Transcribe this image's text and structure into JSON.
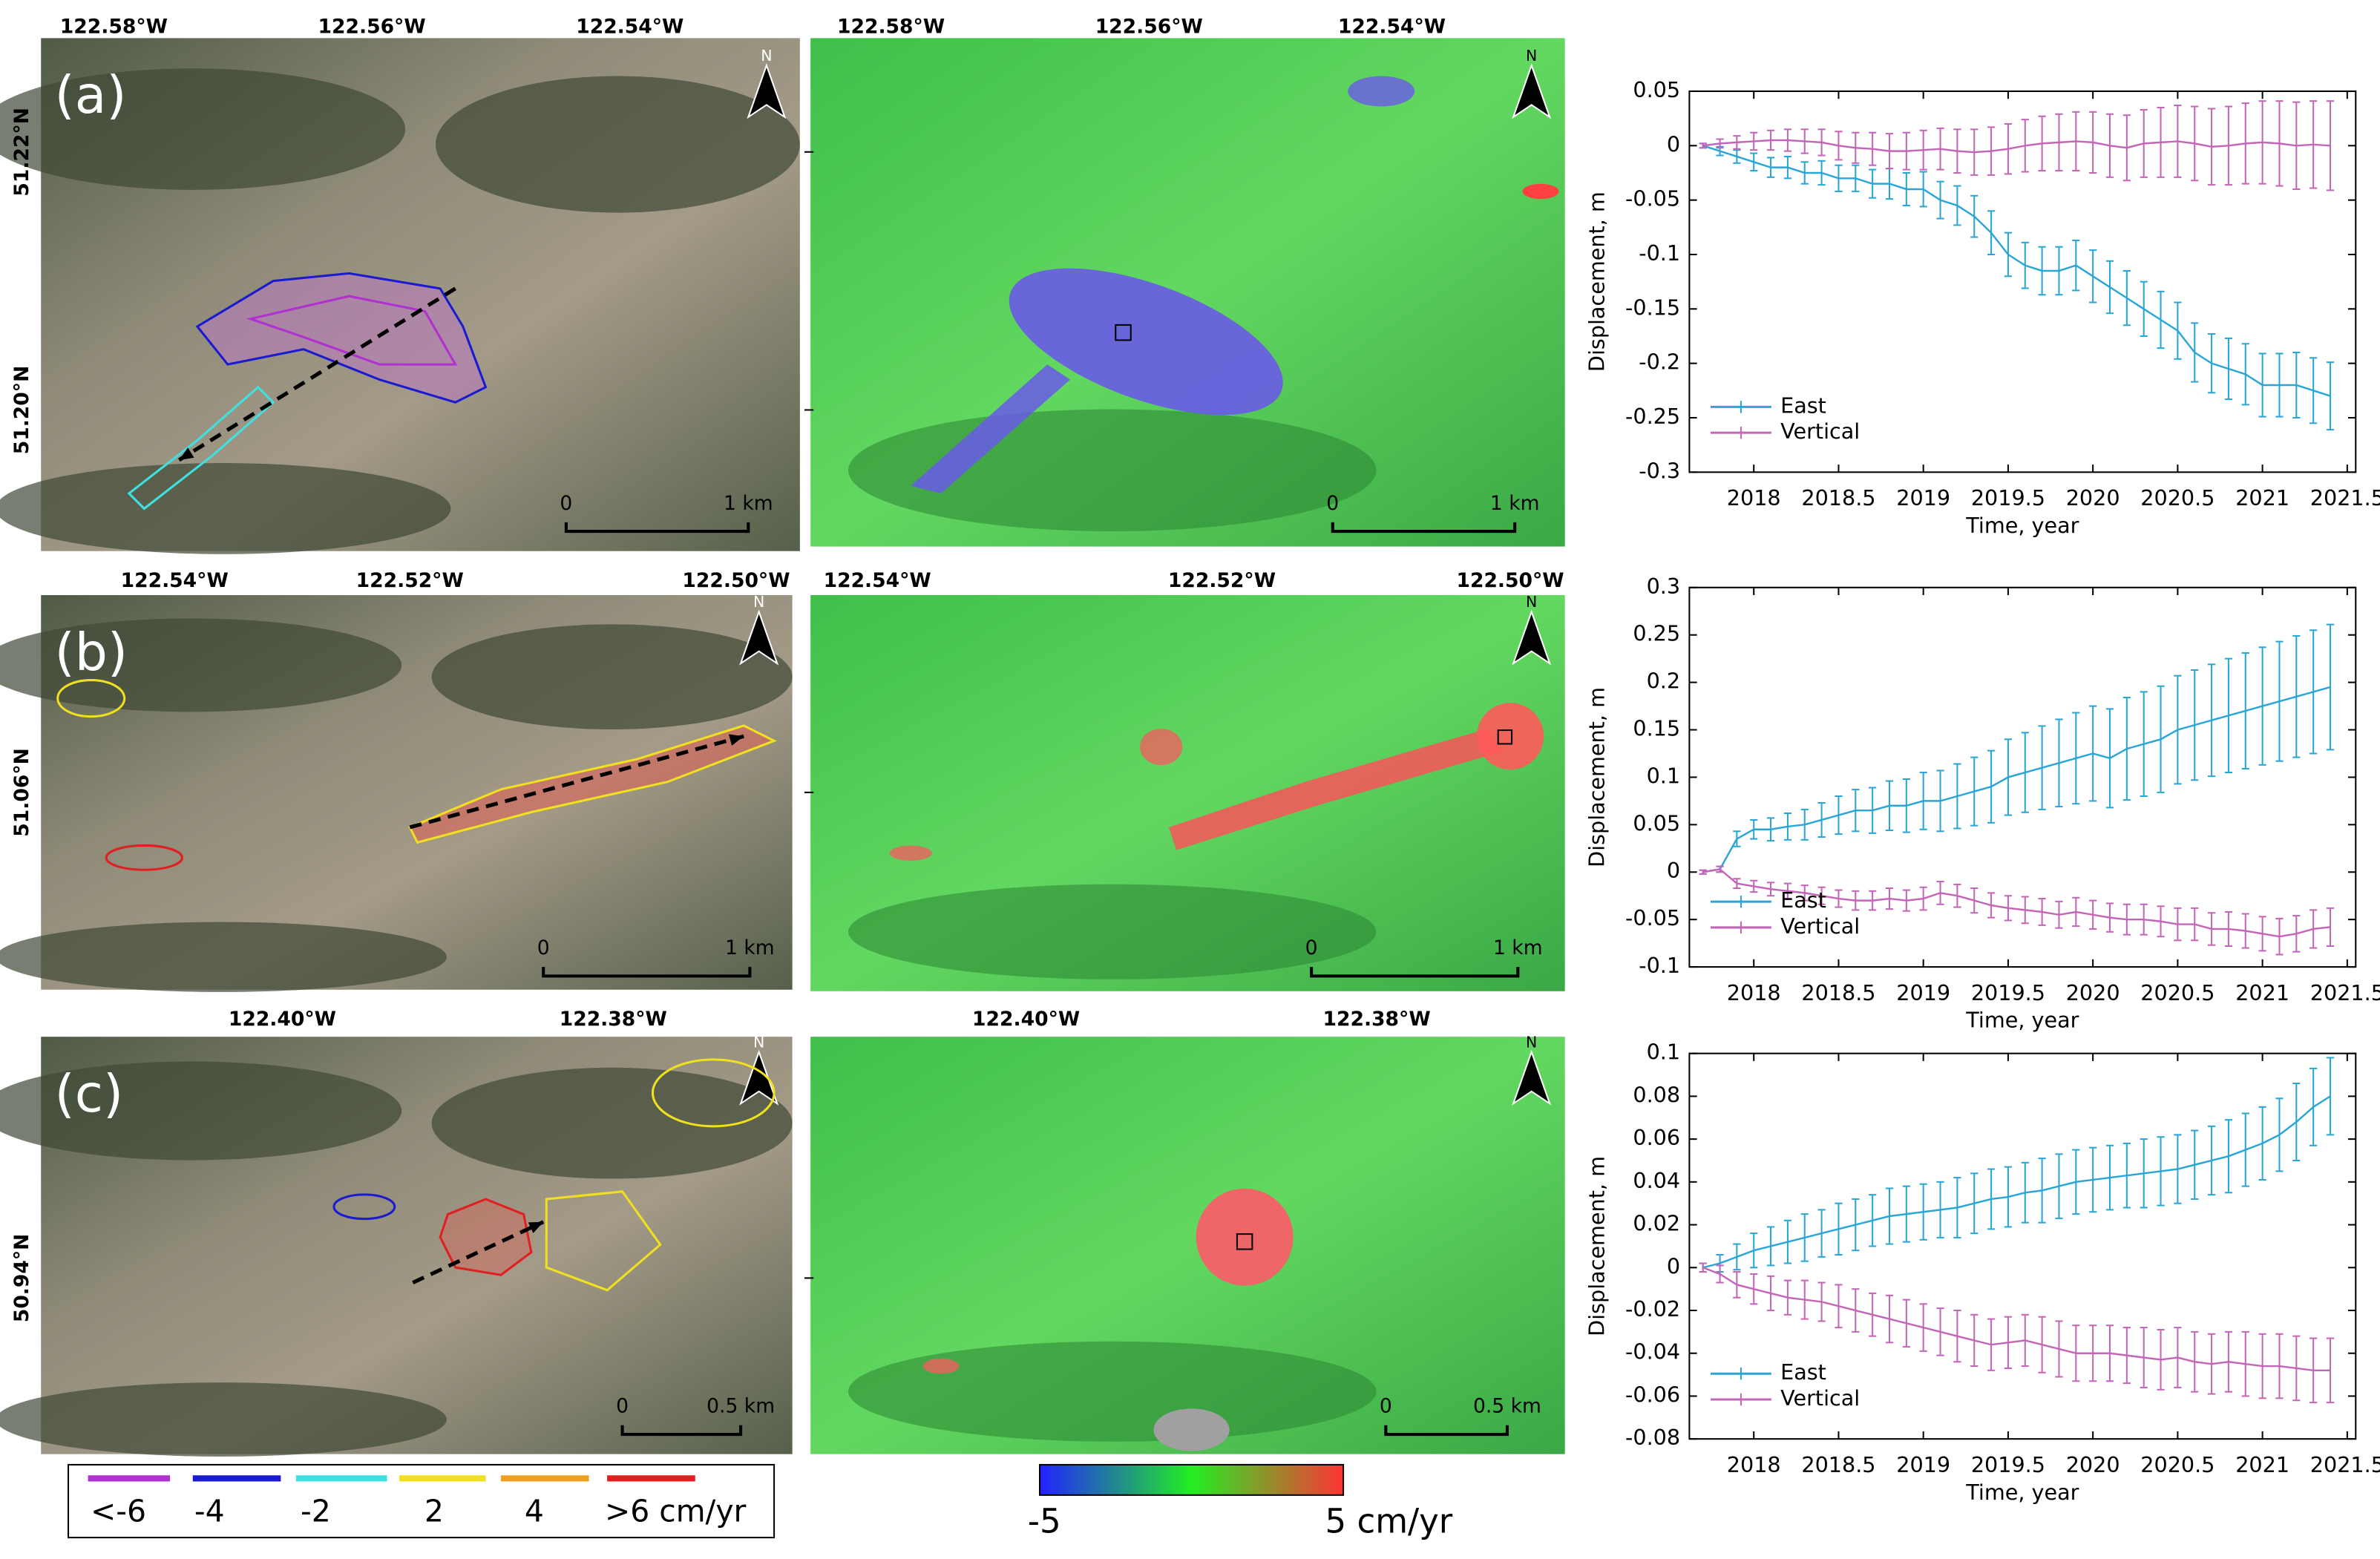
{
  "figure": {
    "panels": [
      {
        "label": "(a)",
        "lat_labels": [
          "51.22°N",
          "51.20°N"
        ],
        "optical": {
          "lon_labels": [
            "122.58°W",
            "122.56°W",
            "122.54°W"
          ],
          "north": "N",
          "scale_labels": [
            "0",
            "1 km"
          ]
        },
        "velocity": {
          "lon_labels": [
            "122.58°W",
            "122.56°W",
            "122.54°W"
          ],
          "north": "N",
          "scale_labels": [
            "0",
            "1 km"
          ]
        }
      },
      {
        "label": "(b)",
        "lat_labels": [
          "51.06°N"
        ],
        "optical": {
          "lon_labels": [
            "122.54°W",
            "122.52°W",
            "122.50°W"
          ],
          "north": "N",
          "scale_labels": [
            "0",
            "1 km"
          ]
        },
        "velocity": {
          "lon_labels": [
            "122.54°W",
            "122.52°W",
            "122.50°W"
          ],
          "north": "N",
          "scale_labels": [
            "0",
            "1 km"
          ]
        }
      },
      {
        "label": "(c)",
        "lat_labels": [
          "50.94°N"
        ],
        "optical": {
          "lon_labels": [
            "122.40°W",
            "122.38°W"
          ],
          "north": "N",
          "scale_labels": [
            "0",
            "0.5 km"
          ]
        },
        "velocity": {
          "lon_labels": [
            "122.40°W",
            "122.38°W"
          ],
          "north": "N",
          "scale_labels": [
            "0",
            "0.5 km"
          ]
        }
      }
    ],
    "contour_legend": [
      {
        "label": "<-6",
        "color": "#b030d0"
      },
      {
        "label": "-4",
        "color": "#1a1ad0"
      },
      {
        "label": "-2",
        "color": "#40e0e0"
      },
      {
        "label": "2",
        "color": "#f0e020"
      },
      {
        "label": "4",
        "color": "#f0a020"
      },
      {
        "label": ">6 cm/yr",
        "color": "#e02020"
      }
    ],
    "colorbar": {
      "labels": [
        "-5",
        "5 cm/yr"
      ],
      "colors": [
        "#2222ff",
        "#22ee22",
        "#ff3333"
      ]
    }
  },
  "chart_data": [
    {
      "type": "line",
      "xlabel": "Time, year",
      "ylabel": "Displacement, m",
      "legend": "lower left",
      "grid": false,
      "xlim": [
        2017.62,
        2021.55
      ],
      "xticks": [
        2018,
        2018.5,
        2019,
        2019.5,
        2020,
        2020.5,
        2021,
        2021.5
      ],
      "ylim": [
        -0.3,
        0.05
      ],
      "yticks": [
        -0.3,
        -0.25,
        -0.2,
        -0.15,
        -0.1,
        -0.05,
        0,
        0.05
      ],
      "x": [
        2017.7,
        2017.8,
        2017.9,
        2018.0,
        2018.1,
        2018.2,
        2018.3,
        2018.4,
        2018.5,
        2018.6,
        2018.7,
        2018.8,
        2018.9,
        2019.0,
        2019.1,
        2019.2,
        2019.3,
        2019.4,
        2019.5,
        2019.6,
        2019.7,
        2019.8,
        2019.9,
        2020.0,
        2020.1,
        2020.2,
        2020.3,
        2020.4,
        2020.5,
        2020.6,
        2020.7,
        2020.8,
        2020.9,
        2021.0,
        2021.1,
        2021.2,
        2021.3,
        2021.4
      ],
      "series": [
        {
          "name": "East",
          "color": "#2aa6d6",
          "values": [
            0,
            -0.005,
            -0.01,
            -0.015,
            -0.02,
            -0.02,
            -0.025,
            -0.025,
            -0.03,
            -0.03,
            -0.035,
            -0.035,
            -0.04,
            -0.04,
            -0.05,
            -0.055,
            -0.065,
            -0.08,
            -0.1,
            -0.11,
            -0.115,
            -0.115,
            -0.11,
            -0.12,
            -0.13,
            -0.14,
            -0.15,
            -0.16,
            -0.17,
            -0.19,
            -0.2,
            -0.205,
            -0.21,
            -0.22,
            -0.22,
            -0.22,
            -0.225,
            -0.23
          ],
          "errors": [
            0.002,
            0.004,
            0.006,
            0.008,
            0.009,
            0.01,
            0.01,
            0.011,
            0.012,
            0.012,
            0.013,
            0.014,
            0.015,
            0.016,
            0.017,
            0.018,
            0.019,
            0.02,
            0.02,
            0.021,
            0.022,
            0.022,
            0.023,
            0.024,
            0.024,
            0.025,
            0.025,
            0.026,
            0.026,
            0.027,
            0.027,
            0.028,
            0.028,
            0.029,
            0.029,
            0.03,
            0.03,
            0.031
          ]
        },
        {
          "name": "Vertical",
          "color": "#c466b8",
          "values": [
            0,
            0.002,
            0.003,
            0.004,
            0.005,
            0.005,
            0.004,
            0.003,
            0,
            -0.002,
            -0.003,
            -0.005,
            -0.005,
            -0.004,
            -0.003,
            -0.005,
            -0.006,
            -0.005,
            -0.003,
            0,
            0.002,
            0.003,
            0.004,
            0.003,
            0,
            -0.002,
            0.002,
            0.003,
            0.004,
            0.002,
            -0.001,
            0,
            0.002,
            0.003,
            0.002,
            0,
            0.001,
            0
          ],
          "errors": [
            0.002,
            0.004,
            0.006,
            0.008,
            0.009,
            0.01,
            0.011,
            0.012,
            0.013,
            0.014,
            0.015,
            0.016,
            0.017,
            0.018,
            0.019,
            0.02,
            0.021,
            0.022,
            0.023,
            0.024,
            0.025,
            0.026,
            0.027,
            0.028,
            0.029,
            0.03,
            0.031,
            0.032,
            0.033,
            0.034,
            0.035,
            0.036,
            0.037,
            0.038,
            0.039,
            0.04,
            0.04,
            0.041
          ]
        }
      ]
    },
    {
      "type": "line",
      "xlabel": "Time, year",
      "ylabel": "Displacement, m",
      "legend": "lower left",
      "grid": false,
      "xlim": [
        2017.62,
        2021.55
      ],
      "xticks": [
        2018,
        2018.5,
        2019,
        2019.5,
        2020,
        2020.5,
        2021,
        2021.5
      ],
      "ylim": [
        -0.1,
        0.3
      ],
      "yticks": [
        -0.1,
        -0.05,
        0,
        0.05,
        0.1,
        0.15,
        0.2,
        0.25,
        0.3
      ],
      "x": [
        2017.7,
        2017.8,
        2017.9,
        2018.0,
        2018.1,
        2018.2,
        2018.3,
        2018.4,
        2018.5,
        2018.6,
        2018.7,
        2018.8,
        2018.9,
        2019.0,
        2019.1,
        2019.2,
        2019.3,
        2019.4,
        2019.5,
        2019.6,
        2019.7,
        2019.8,
        2019.9,
        2020.0,
        2020.1,
        2020.2,
        2020.3,
        2020.4,
        2020.5,
        2020.6,
        2020.7,
        2020.8,
        2020.9,
        2021.0,
        2021.1,
        2021.2,
        2021.3,
        2021.4
      ],
      "series": [
        {
          "name": "East",
          "color": "#2aa6d6",
          "values": [
            0,
            0.003,
            0.035,
            0.045,
            0.045,
            0.048,
            0.05,
            0.055,
            0.06,
            0.065,
            0.065,
            0.07,
            0.07,
            0.075,
            0.075,
            0.08,
            0.085,
            0.09,
            0.1,
            0.105,
            0.11,
            0.115,
            0.12,
            0.125,
            0.12,
            0.13,
            0.135,
            0.14,
            0.15,
            0.155,
            0.16,
            0.165,
            0.17,
            0.175,
            0.18,
            0.185,
            0.19,
            0.195
          ],
          "errors": [
            0.002,
            0.003,
            0.008,
            0.01,
            0.012,
            0.014,
            0.016,
            0.018,
            0.02,
            0.022,
            0.024,
            0.026,
            0.028,
            0.03,
            0.032,
            0.034,
            0.036,
            0.038,
            0.04,
            0.042,
            0.044,
            0.046,
            0.048,
            0.05,
            0.052,
            0.054,
            0.055,
            0.056,
            0.057,
            0.058,
            0.059,
            0.06,
            0.061,
            0.062,
            0.063,
            0.064,
            0.065,
            0.066
          ]
        },
        {
          "name": "Vertical",
          "color": "#c466b8",
          "values": [
            0,
            0.003,
            -0.012,
            -0.015,
            -0.018,
            -0.02,
            -0.022,
            -0.025,
            -0.028,
            -0.03,
            -0.03,
            -0.028,
            -0.03,
            -0.028,
            -0.022,
            -0.025,
            -0.03,
            -0.035,
            -0.038,
            -0.04,
            -0.042,
            -0.045,
            -0.042,
            -0.045,
            -0.048,
            -0.05,
            -0.05,
            -0.052,
            -0.055,
            -0.055,
            -0.06,
            -0.06,
            -0.062,
            -0.065,
            -0.068,
            -0.065,
            -0.06,
            -0.058
          ],
          "errors": [
            0.002,
            0.003,
            0.005,
            0.006,
            0.007,
            0.008,
            0.008,
            0.009,
            0.009,
            0.01,
            0.01,
            0.011,
            0.011,
            0.012,
            0.012,
            0.012,
            0.013,
            0.013,
            0.013,
            0.014,
            0.014,
            0.014,
            0.015,
            0.015,
            0.015,
            0.016,
            0.016,
            0.016,
            0.017,
            0.017,
            0.017,
            0.018,
            0.018,
            0.018,
            0.019,
            0.019,
            0.02,
            0.02
          ]
        }
      ]
    },
    {
      "type": "line",
      "xlabel": "Time, year",
      "ylabel": "Displacement, m",
      "legend": "lower left",
      "grid": false,
      "xlim": [
        2017.62,
        2021.55
      ],
      "xticks": [
        2018,
        2018.5,
        2019,
        2019.5,
        2020,
        2020.5,
        2021,
        2021.5
      ],
      "ylim": [
        -0.08,
        0.1
      ],
      "yticks": [
        -0.08,
        -0.06,
        -0.04,
        -0.02,
        0,
        0.02,
        0.04,
        0.06,
        0.08,
        0.1
      ],
      "x": [
        2017.7,
        2017.8,
        2017.9,
        2018.0,
        2018.1,
        2018.2,
        2018.3,
        2018.4,
        2018.5,
        2018.6,
        2018.7,
        2018.8,
        2018.9,
        2019.0,
        2019.1,
        2019.2,
        2019.3,
        2019.4,
        2019.5,
        2019.6,
        2019.7,
        2019.8,
        2019.9,
        2020.0,
        2020.1,
        2020.2,
        2020.3,
        2020.4,
        2020.5,
        2020.6,
        2020.7,
        2020.8,
        2020.9,
        2021.0,
        2021.1,
        2021.2,
        2021.3,
        2021.4
      ],
      "series": [
        {
          "name": "East",
          "color": "#2aa6d6",
          "values": [
            0,
            0.002,
            0.005,
            0.008,
            0.01,
            0.012,
            0.014,
            0.016,
            0.018,
            0.02,
            0.022,
            0.024,
            0.025,
            0.026,
            0.027,
            0.028,
            0.03,
            0.032,
            0.033,
            0.035,
            0.036,
            0.038,
            0.04,
            0.041,
            0.042,
            0.043,
            0.044,
            0.045,
            0.046,
            0.048,
            0.05,
            0.052,
            0.055,
            0.058,
            0.062,
            0.068,
            0.075,
            0.08
          ],
          "errors": [
            0.002,
            0.004,
            0.006,
            0.008,
            0.009,
            0.01,
            0.011,
            0.011,
            0.012,
            0.012,
            0.012,
            0.013,
            0.013,
            0.013,
            0.013,
            0.014,
            0.014,
            0.014,
            0.014,
            0.014,
            0.015,
            0.015,
            0.015,
            0.015,
            0.015,
            0.015,
            0.016,
            0.016,
            0.016,
            0.016,
            0.016,
            0.017,
            0.017,
            0.017,
            0.017,
            0.018,
            0.018,
            0.018
          ]
        },
        {
          "name": "Vertical",
          "color": "#c466b8",
          "values": [
            0,
            -0.003,
            -0.008,
            -0.01,
            -0.012,
            -0.014,
            -0.015,
            -0.016,
            -0.018,
            -0.02,
            -0.022,
            -0.024,
            -0.026,
            -0.028,
            -0.03,
            -0.032,
            -0.034,
            -0.036,
            -0.035,
            -0.034,
            -0.036,
            -0.038,
            -0.04,
            -0.04,
            -0.04,
            -0.041,
            -0.042,
            -0.043,
            -0.042,
            -0.044,
            -0.045,
            -0.044,
            -0.045,
            -0.046,
            -0.046,
            -0.047,
            -0.048,
            -0.048
          ],
          "errors": [
            0.002,
            0.004,
            0.006,
            0.007,
            0.008,
            0.008,
            0.009,
            0.009,
            0.01,
            0.01,
            0.01,
            0.011,
            0.011,
            0.011,
            0.011,
            0.012,
            0.012,
            0.012,
            0.012,
            0.012,
            0.013,
            0.013,
            0.013,
            0.013,
            0.013,
            0.013,
            0.014,
            0.014,
            0.014,
            0.014,
            0.014,
            0.014,
            0.015,
            0.015,
            0.015,
            0.015,
            0.015,
            0.015
          ]
        }
      ]
    }
  ]
}
